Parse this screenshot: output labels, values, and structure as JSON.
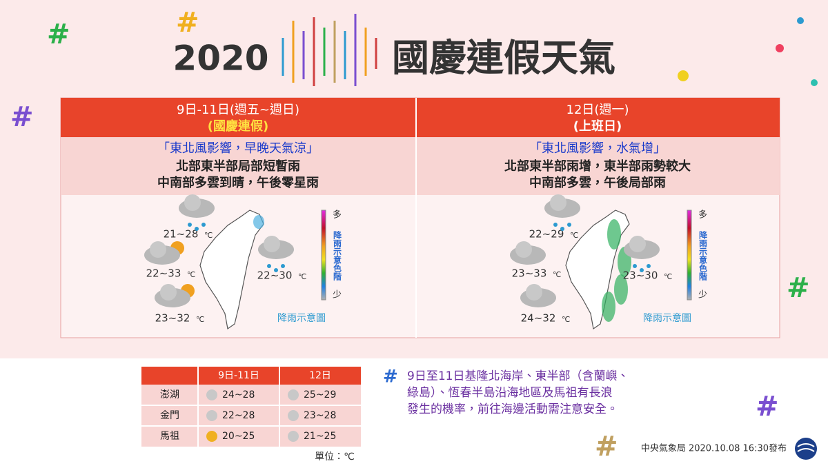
{
  "header": {
    "year": "2020",
    "title": "國慶連假天氣"
  },
  "panels": [
    {
      "period": "9日-11日(週五~週日)",
      "tag": "(國慶連假)",
      "headline": "「東北風影響，早晚天氣涼」",
      "lines": [
        "北部東半部局部短暫雨",
        "中南部多雲到晴，午後零星雨"
      ],
      "temps": [
        "21~28",
        "22~30",
        "22~33",
        "23~32"
      ]
    },
    {
      "period": "12日(週一)",
      "tag": "(上班日)",
      "headline": "「東北風影響，水氣增」",
      "lines": [
        "北部東半部雨增，東半部雨勢較大",
        "中南部多雲，午後局部雨"
      ],
      "temps": [
        "22~29",
        "23~30",
        "23~33",
        "24~32"
      ]
    }
  ],
  "unit": "℃",
  "scale": {
    "high": "多",
    "label": "降雨示意色階",
    "low": "少",
    "caption": "降雨示意圖"
  },
  "table": {
    "columns": [
      "9日-11日",
      "12日"
    ],
    "rows": [
      [
        "澎湖",
        "24~28",
        "25~29"
      ],
      [
        "金門",
        "22~28",
        "23~28"
      ],
      [
        "馬祖",
        "20~25",
        "21~25"
      ]
    ],
    "unit_note": "單位：℃"
  },
  "notice": [
    "9日至11日基隆北海岸、東半部（含蘭嶼、",
    "綠島）、恆春半島沿海地區及馬祖有長浪",
    "發生的機率，前往海邊活動需注意安全。"
  ],
  "footer": "中央氣象局 2020.10.08 16:30發布"
}
